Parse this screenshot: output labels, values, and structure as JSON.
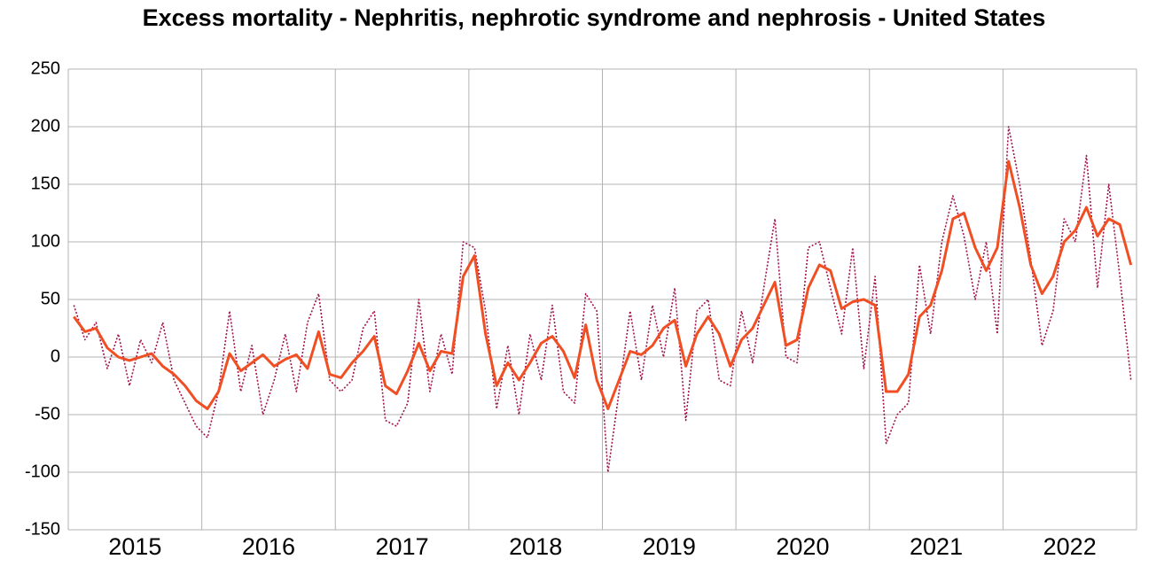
{
  "chart_data": {
    "type": "line",
    "title": "Excess mortality - Nephritis, nephrotic syndrome and nephrosis - United States",
    "categories": [
      "2015",
      "2016",
      "2017",
      "2018",
      "2019",
      "2020",
      "2021",
      "2022"
    ],
    "xlim": [
      2015,
      2023
    ],
    "x": [
      2015.042,
      2015.125,
      2015.208,
      2015.292,
      2015.375,
      2015.458,
      2015.542,
      2015.625,
      2015.708,
      2015.792,
      2015.875,
      2015.958,
      2016.042,
      2016.125,
      2016.208,
      2016.292,
      2016.375,
      2016.458,
      2016.542,
      2016.625,
      2016.708,
      2016.792,
      2016.875,
      2016.958,
      2017.042,
      2017.125,
      2017.208,
      2017.292,
      2017.375,
      2017.458,
      2017.542,
      2017.625,
      2017.708,
      2017.792,
      2017.875,
      2017.958,
      2018.042,
      2018.125,
      2018.208,
      2018.292,
      2018.375,
      2018.458,
      2018.542,
      2018.625,
      2018.708,
      2018.792,
      2018.875,
      2018.958,
      2019.042,
      2019.125,
      2019.208,
      2019.292,
      2019.375,
      2019.458,
      2019.542,
      2019.625,
      2019.708,
      2019.792,
      2019.875,
      2019.958,
      2020.042,
      2020.125,
      2020.208,
      2020.292,
      2020.375,
      2020.458,
      2020.542,
      2020.625,
      2020.708,
      2020.792,
      2020.875,
      2020.958,
      2021.042,
      2021.125,
      2021.208,
      2021.292,
      2021.375,
      2021.458,
      2021.542,
      2021.625,
      2021.708,
      2021.792,
      2021.875,
      2021.958,
      2022.042,
      2022.125,
      2022.208,
      2022.292,
      2022.375,
      2022.458,
      2022.542,
      2022.625,
      2022.708,
      2022.792,
      2022.875,
      2022.958
    ],
    "ylim": [
      -150,
      250
    ],
    "yticks": [
      -150,
      -100,
      -50,
      0,
      50,
      100,
      150,
      200,
      250
    ],
    "grid": true,
    "series": [
      {
        "color": "#a0134e",
        "dash": "dotted",
        "values": [
          45,
          15,
          30,
          -10,
          20,
          -25,
          15,
          -5,
          30,
          -20,
          -40,
          -60,
          -70,
          -30,
          40,
          -30,
          10,
          -50,
          -20,
          20,
          -30,
          30,
          55,
          -20,
          -30,
          -20,
          25,
          40,
          -55,
          -60,
          -40,
          50,
          -30,
          20,
          -15,
          100,
          95,
          40,
          -45,
          10,
          -50,
          20,
          -20,
          45,
          -30,
          -40,
          55,
          40,
          -100,
          -30,
          40,
          -20,
          45,
          0,
          60,
          -55,
          40,
          50,
          -20,
          -25,
          40,
          -5,
          60,
          120,
          0,
          -5,
          95,
          100,
          60,
          20,
          95,
          -10,
          70,
          -75,
          -50,
          -40,
          80,
          20,
          100,
          140,
          105,
          50,
          100,
          20,
          200,
          150,
          85,
          10,
          40,
          120,
          100,
          175,
          60,
          150,
          70,
          -20
        ]
      },
      {
        "color": "#f04e23",
        "dash": "solid",
        "values": [
          35,
          22,
          25,
          8,
          0,
          -3,
          0,
          3,
          -8,
          -15,
          -25,
          -38,
          -45,
          -30,
          3,
          -12,
          -5,
          2,
          -8,
          -2,
          2,
          -10,
          22,
          -15,
          -18,
          -5,
          5,
          18,
          -25,
          -32,
          -12,
          12,
          -12,
          5,
          3,
          70,
          88,
          20,
          -25,
          -5,
          -20,
          -5,
          12,
          18,
          5,
          -18,
          28,
          -20,
          -45,
          -20,
          5,
          2,
          10,
          25,
          32,
          -8,
          20,
          35,
          20,
          -8,
          15,
          25,
          45,
          65,
          10,
          15,
          60,
          80,
          75,
          42,
          48,
          50,
          45,
          -30,
          -30,
          -15,
          35,
          45,
          75,
          120,
          125,
          95,
          75,
          95,
          170,
          130,
          80,
          55,
          70,
          100,
          110,
          130,
          105,
          120,
          115,
          80
        ]
      }
    ]
  }
}
